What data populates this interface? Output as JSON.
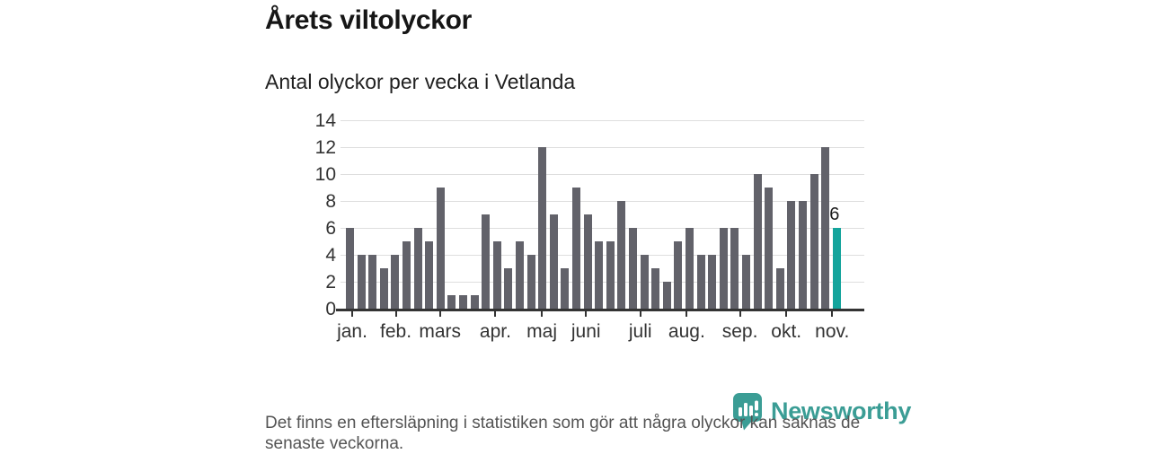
{
  "header": {
    "title": "Årets viltolyckor",
    "subtitle": "Antal olyckor per vecka i Vetlanda"
  },
  "chart_data": {
    "type": "bar",
    "title": "Årets viltolyckor",
    "subtitle": "Antal olyckor per vecka i Vetlanda",
    "x_unit": "vecka",
    "weeks": [
      1,
      2,
      3,
      4,
      5,
      6,
      7,
      8,
      9,
      10,
      11,
      12,
      13,
      14,
      15,
      16,
      17,
      18,
      19,
      20,
      21,
      22,
      23,
      24,
      25,
      26,
      27,
      28,
      29,
      30,
      31,
      32,
      33,
      34,
      35,
      36,
      37,
      38,
      39,
      40,
      41,
      42,
      43,
      44
    ],
    "values": [
      6,
      4,
      4,
      3,
      4,
      5,
      6,
      5,
      9,
      1,
      1,
      1,
      7,
      5,
      3,
      5,
      4,
      12,
      7,
      3,
      9,
      7,
      5,
      5,
      8,
      6,
      4,
      3,
      2,
      5,
      6,
      4,
      4,
      6,
      6,
      4,
      10,
      9,
      3,
      8,
      8,
      10,
      12,
      6
    ],
    "highlight_last_bar": true,
    "last_value_label": "6",
    "ylim": [
      0,
      14
    ],
    "y_ticks": [
      0,
      2,
      4,
      6,
      8,
      10,
      12,
      14
    ],
    "grid": true,
    "months": [
      {
        "label": "jan.",
        "week_index": 0.2
      },
      {
        "label": "feb.",
        "week_index": 4.05
      },
      {
        "label": "mars",
        "week_index": 7.95
      },
      {
        "label": "apr.",
        "week_index": 12.85
      },
      {
        "label": "maj",
        "week_index": 16.95
      },
      {
        "label": "juni",
        "week_index": 20.85
      },
      {
        "label": "juli",
        "week_index": 25.65
      },
      {
        "label": "aug.",
        "week_index": 29.75
      },
      {
        "label": "sep.",
        "week_index": 34.45
      },
      {
        "label": "okt.",
        "week_index": 38.55
      },
      {
        "label": "nov.",
        "week_index": 42.6
      }
    ],
    "colors": {
      "bar": "#62626a",
      "highlight": "#14a49c",
      "grid": "#dedede",
      "axis": "#333333"
    }
  },
  "footer": {
    "note": "Det finns en eftersläpning i statistiken som gör att några olyckor kan saknas de senaste veckorna."
  },
  "logo": {
    "text": "Newsworthy",
    "color": "#3b9d95"
  }
}
